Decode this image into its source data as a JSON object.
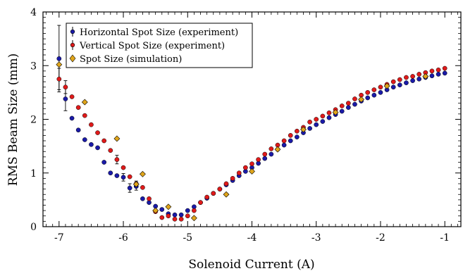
{
  "chart_data": {
    "type": "scatter",
    "title": "",
    "xlabel": "Solenoid Current (A)",
    "ylabel": "RMS Beam Size (mm)",
    "xlim": [
      -7.25,
      -0.75
    ],
    "ylim": [
      0,
      4
    ],
    "xticks": [
      -7,
      -6,
      -5,
      -4,
      -3,
      -2,
      -1
    ],
    "xtick_labels": [
      "-7",
      "-6",
      "-5",
      "-4",
      "-3",
      "-2",
      "-1"
    ],
    "yticks": [
      0,
      1,
      2,
      3,
      4
    ],
    "ytick_labels": [
      "0",
      "1",
      "2",
      "3",
      "4"
    ],
    "grid": false,
    "legend_position": "top-left",
    "series": [
      {
        "name": "Horizontal Spot Size (experiment)",
        "marker": "circle",
        "color": "#1a1aa8",
        "x": [
          -7.0,
          -6.9,
          -6.8,
          -6.7,
          -6.6,
          -6.5,
          -6.4,
          -6.3,
          -6.2,
          -6.1,
          -6.0,
          -5.9,
          -5.8,
          -5.7,
          -5.6,
          -5.5,
          -5.4,
          -5.3,
          -5.2,
          -5.1,
          -5.0,
          -4.9,
          -4.8,
          -4.7,
          -4.6,
          -4.5,
          -4.4,
          -4.3,
          -4.2,
          -4.1,
          -4.0,
          -3.9,
          -3.8,
          -3.7,
          -3.6,
          -3.5,
          -3.4,
          -3.3,
          -3.2,
          -3.1,
          -3.0,
          -2.9,
          -2.8,
          -2.7,
          -2.6,
          -2.5,
          -2.4,
          -2.3,
          -2.2,
          -2.1,
          -2.0,
          -1.9,
          -1.8,
          -1.7,
          -1.6,
          -1.5,
          -1.4,
          -1.3,
          -1.2,
          -1.1,
          -1.0
        ],
        "y": [
          3.13,
          2.38,
          2.02,
          1.8,
          1.62,
          1.53,
          1.47,
          1.2,
          1.0,
          0.95,
          0.92,
          0.72,
          0.75,
          0.52,
          0.45,
          0.38,
          0.32,
          0.24,
          0.22,
          0.22,
          0.3,
          0.37,
          0.45,
          0.53,
          0.62,
          0.7,
          0.78,
          0.86,
          0.95,
          1.03,
          1.1,
          1.18,
          1.27,
          1.35,
          1.44,
          1.52,
          1.6,
          1.67,
          1.75,
          1.83,
          1.9,
          1.96,
          2.03,
          2.09,
          2.15,
          2.22,
          2.28,
          2.34,
          2.4,
          2.45,
          2.5,
          2.55,
          2.6,
          2.64,
          2.68,
          2.72,
          2.75,
          2.78,
          2.81,
          2.84,
          2.86
        ],
        "yerr": [
          0.62,
          0.22,
          0,
          0,
          0,
          0,
          0,
          0,
          0,
          0,
          0.07,
          0.08,
          0.07,
          0,
          0,
          0,
          0,
          0,
          0,
          0,
          0,
          0,
          0,
          0,
          0,
          0,
          0,
          0,
          0,
          0,
          0,
          0,
          0,
          0,
          0,
          0,
          0,
          0,
          0,
          0,
          0,
          0,
          0,
          0,
          0,
          0,
          0,
          0,
          0,
          0,
          0,
          0,
          0,
          0,
          0,
          0,
          0,
          0,
          0,
          0,
          0
        ]
      },
      {
        "name": "Vertical Spot Size (experiment)",
        "marker": "circle",
        "color": "#e01a1a",
        "x": [
          -7.0,
          -6.9,
          -6.8,
          -6.7,
          -6.6,
          -6.5,
          -6.4,
          -6.3,
          -6.2,
          -6.1,
          -6.0,
          -5.9,
          -5.8,
          -5.7,
          -5.6,
          -5.5,
          -5.4,
          -5.3,
          -5.2,
          -5.1,
          -5.0,
          -4.9,
          -4.8,
          -4.7,
          -4.6,
          -4.5,
          -4.4,
          -4.3,
          -4.2,
          -4.1,
          -4.0,
          -3.9,
          -3.8,
          -3.7,
          -3.6,
          -3.5,
          -3.4,
          -3.3,
          -3.2,
          -3.1,
          -3.0,
          -2.9,
          -2.8,
          -2.7,
          -2.6,
          -2.5,
          -2.4,
          -2.3,
          -2.2,
          -2.1,
          -2.0,
          -1.9,
          -1.8,
          -1.7,
          -1.6,
          -1.5,
          -1.4,
          -1.3,
          -1.2,
          -1.1,
          -1.0
        ],
        "y": [
          2.75,
          2.6,
          2.42,
          2.22,
          2.07,
          1.9,
          1.75,
          1.6,
          1.42,
          1.25,
          1.1,
          0.93,
          0.8,
          0.73,
          0.52,
          0.28,
          0.17,
          0.2,
          0.14,
          0.14,
          0.2,
          0.3,
          0.45,
          0.55,
          0.62,
          0.7,
          0.8,
          0.9,
          1.0,
          1.1,
          1.17,
          1.25,
          1.35,
          1.45,
          1.52,
          1.6,
          1.7,
          1.78,
          1.85,
          1.95,
          2.0,
          2.06,
          2.12,
          2.18,
          2.25,
          2.3,
          2.38,
          2.45,
          2.5,
          2.55,
          2.6,
          2.65,
          2.7,
          2.74,
          2.78,
          2.8,
          2.84,
          2.87,
          2.9,
          2.92,
          2.95
        ],
        "yerr": [
          0.2,
          0.12,
          0,
          0,
          0,
          0,
          0,
          0,
          0,
          0.08,
          0,
          0,
          0.05,
          0,
          0,
          0,
          0,
          0,
          0,
          0,
          0,
          0,
          0,
          0,
          0,
          0,
          0,
          0,
          0,
          0,
          0,
          0,
          0,
          0,
          0,
          0,
          0,
          0,
          0,
          0,
          0,
          0,
          0,
          0,
          0,
          0,
          0,
          0,
          0,
          0,
          0,
          0,
          0,
          0,
          0,
          0,
          0,
          0,
          0,
          0,
          0
        ]
      },
      {
        "name": "Spot Size (simulation)",
        "marker": "diamond",
        "color": "#e0a51a",
        "x": [
          -7.0,
          -6.6,
          -6.1,
          -5.8,
          -5.7,
          -5.5,
          -5.3,
          -4.9,
          -4.4,
          -4.0,
          -3.6,
          -3.2,
          -2.7,
          -2.3,
          -1.9,
          -1.3
        ],
        "y": [
          3.02,
          2.32,
          1.64,
          0.79,
          0.98,
          0.3,
          0.37,
          0.16,
          0.6,
          1.03,
          1.44,
          1.81,
          2.13,
          2.37,
          2.62,
          2.8
        ]
      }
    ]
  }
}
